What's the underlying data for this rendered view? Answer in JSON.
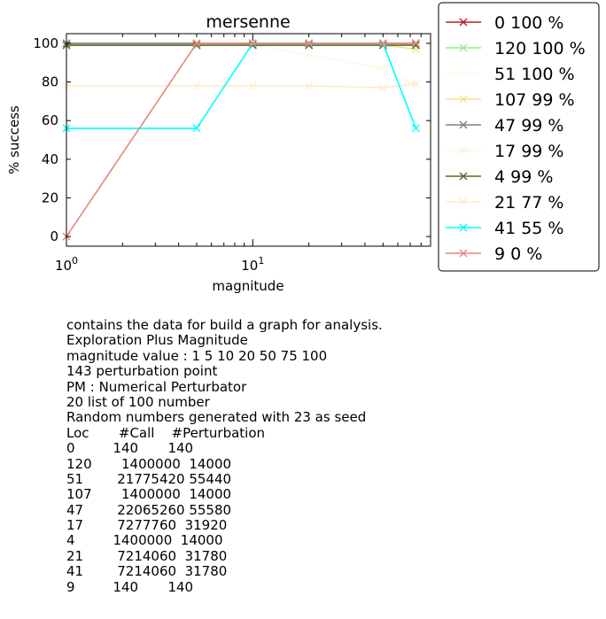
{
  "chart_data": {
    "type": "line",
    "title": "mersenne",
    "xlabel": "magnitude",
    "ylabel": "% success",
    "x_scale": "log",
    "xlim": [
      1,
      90
    ],
    "ylim": [
      -5,
      105
    ],
    "x_ticks": [
      {
        "value": 1,
        "base": "10",
        "exp": "0"
      },
      {
        "value": 10,
        "base": "10",
        "exp": "1"
      }
    ],
    "y_ticks": [
      "0",
      "20",
      "40",
      "60",
      "80",
      "100"
    ],
    "x": [
      1,
      5,
      10,
      20,
      50,
      75
    ],
    "legend_position": "outside-right",
    "series": [
      {
        "name": "0 100 %",
        "color": "#b22222",
        "values": [
          100,
          100,
          100,
          100,
          100,
          100
        ]
      },
      {
        "name": "120 100 %",
        "color": "#90ee90",
        "values": [
          100,
          100,
          100,
          100,
          100,
          100
        ]
      },
      {
        "name": "51 100 %",
        "color": "#fff8e7",
        "values": [
          100,
          100,
          99,
          94,
          87,
          78
        ]
      },
      {
        "name": "107 99 %",
        "color": "#f0e68c",
        "values": [
          99,
          99,
          99,
          99,
          99,
          97
        ]
      },
      {
        "name": "47 99 %",
        "color": "#808080",
        "values": [
          100,
          100,
          100,
          100,
          100,
          100
        ]
      },
      {
        "name": "17 99 %",
        "color": "#fdf2e0",
        "values": [
          99,
          99,
          99,
          99,
          99,
          99
        ]
      },
      {
        "name": "4 99 %",
        "color": "#556b2f",
        "values": [
          99,
          99,
          99,
          99,
          99,
          99
        ]
      },
      {
        "name": "21 77 %",
        "color": "#ffebcd",
        "values": [
          78,
          78,
          78,
          78,
          77,
          79
        ]
      },
      {
        "name": "41 55 %",
        "color": "#00ffff",
        "values": [
          56,
          56,
          100,
          100,
          100,
          56
        ]
      },
      {
        "name": "9 0 %",
        "color": "#e9857d",
        "values": [
          0,
          100,
          100,
          100,
          100,
          100
        ]
      }
    ]
  },
  "notes": [
    "contains the data for build a graph for analysis.",
    "Exploration Plus Magnitude",
    "magnitude value : 1 5 10 20 50 75 100",
    "143 perturbation point",
    "PM : Numerical Perturbator",
    "20 list of 100 number",
    "Random numbers generated with 23 as seed",
    "Loc       #Call    #Perturbation",
    "0         140       140",
    "120       1400000  14000",
    "51        21775420 55440",
    "107       1400000  14000",
    "47        22065260 55580",
    "17        7277760  31920",
    "4         1400000  14000",
    "21        7214060  31780",
    "41        7214060  31780",
    "9         140       140"
  ]
}
